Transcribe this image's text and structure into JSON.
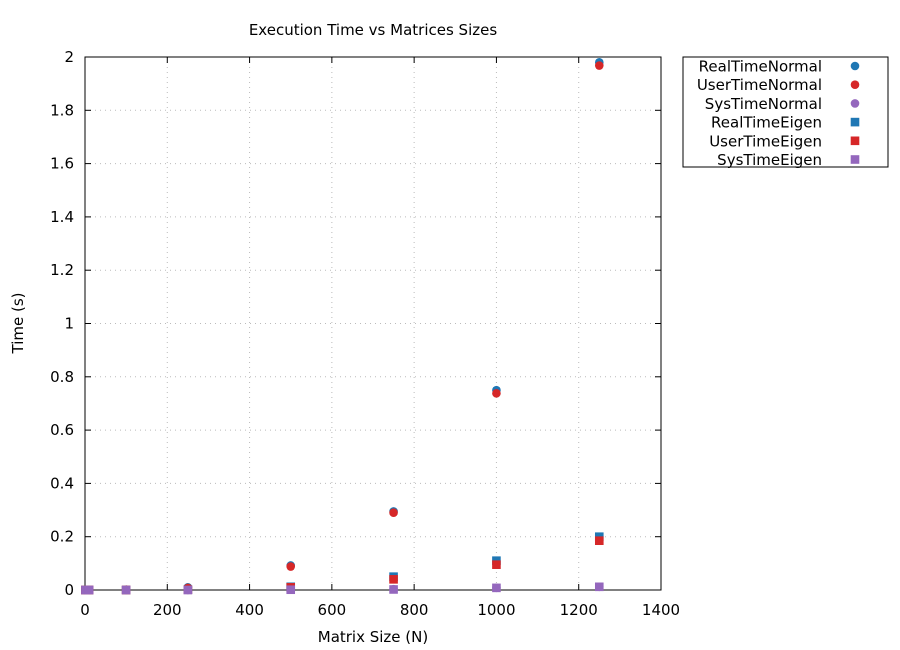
{
  "chart_data": {
    "type": "scatter",
    "title": "Execution Time vs Matrices Sizes",
    "xlabel": "Matrix Size (N)",
    "ylabel": "Time (s)",
    "xlim": [
      0,
      1400
    ],
    "ylim": [
      0,
      2
    ],
    "xticks": [
      "0",
      "200",
      "400",
      "600",
      "800",
      "1000",
      "1200",
      "1400"
    ],
    "yticks": [
      "0",
      "0.2",
      "0.4",
      "0.6",
      "0.8",
      "1",
      "1.2",
      "1.4",
      "1.6",
      "1.8",
      "2"
    ],
    "grid": true,
    "legend_position": "outside-top-right",
    "series": [
      {
        "name": "RealTimeNormal",
        "marker": "circle",
        "color": "#1f77b4",
        "x": [
          1,
          10,
          100,
          250,
          500,
          750,
          1000,
          1250
        ],
        "y": [
          0.0,
          0.0,
          0.001,
          0.01,
          0.092,
          0.295,
          0.75,
          1.98
        ]
      },
      {
        "name": "UserTimeNormal",
        "marker": "circle",
        "color": "#d62728",
        "x": [
          1,
          10,
          100,
          250,
          500,
          750,
          1000,
          1250
        ],
        "y": [
          0.0,
          0.0,
          0.001,
          0.008,
          0.088,
          0.29,
          0.738,
          1.968
        ]
      },
      {
        "name": "SysTimeNormal",
        "marker": "circle",
        "color": "#9467bd",
        "x": [
          1,
          10,
          100,
          250,
          500,
          750,
          1000,
          1250
        ],
        "y": [
          0.0,
          0.0,
          0.0,
          0.0,
          0.002,
          0.003,
          0.008,
          0.012
        ]
      },
      {
        "name": "RealTimeEigen",
        "marker": "square",
        "color": "#1f77b4",
        "x": [
          1,
          10,
          100,
          250,
          500,
          750,
          1000,
          1250
        ],
        "y": [
          0.0,
          0.0,
          0.0,
          0.001,
          0.012,
          0.05,
          0.11,
          0.2
        ]
      },
      {
        "name": "UserTimeEigen",
        "marker": "square",
        "color": "#d62728",
        "x": [
          1,
          10,
          100,
          250,
          500,
          750,
          1000,
          1250
        ],
        "y": [
          0.0,
          0.0,
          0.0,
          0.001,
          0.01,
          0.04,
          0.095,
          0.185
        ]
      },
      {
        "name": "SysTimeEigen",
        "marker": "square",
        "color": "#9467bd",
        "x": [
          1,
          10,
          100,
          250,
          500,
          750,
          1000,
          1250
        ],
        "y": [
          0.0,
          0.0,
          0.0,
          0.0,
          0.001,
          0.002,
          0.008,
          0.012
        ]
      }
    ]
  }
}
